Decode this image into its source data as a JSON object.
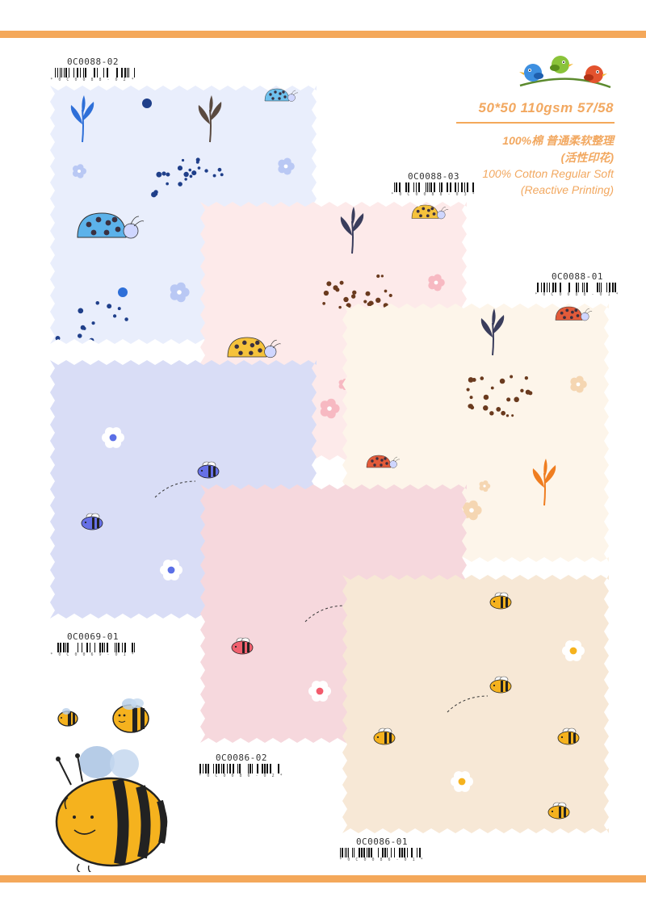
{
  "colors": {
    "accent": "#f4a85a",
    "band": "#f4a85a",
    "text_orange": "#f2a860"
  },
  "spec": {
    "main": "50*50 110gsm 57/58",
    "cn_line1": "100%棉  普通柔软整理",
    "cn_line2": "(活性印花)",
    "en_line1": "100% Cotton  Regular Soft",
    "en_line2": "(Reactive Printing)"
  },
  "swatches": [
    {
      "code": "0C0088-02",
      "barcode_text": "* 0 C 0 0 8 8 - 0 2 *",
      "bg": "#e9eefc",
      "motif": "ladybug-blue"
    },
    {
      "code": "0C0088-03",
      "barcode_text": "* 0 C 0 0 8 8 - 0 3 *",
      "bg": "#fdeaea",
      "motif": "ladybug-yellow"
    },
    {
      "code": "0C0088-01",
      "barcode_text": "* 0 C 0 0 8 8 - 0 1 *",
      "bg": "#fdf5ea",
      "motif": "leaf-orange"
    },
    {
      "code": "0C0069-01",
      "barcode_text": "* 0 C 0 0 6 9 - 0 1 *",
      "bg": "#d9ddf6",
      "motif": "bee-blue"
    },
    {
      "code": "0C0086-02",
      "barcode_text": "* 0 C 0 0 8 6 - 0 2 *",
      "bg": "#f6d8dd",
      "motif": "bee-pink"
    },
    {
      "code": "0C0086-01",
      "barcode_text": "* 0 C 0 0 8 6 - 0 1 *",
      "bg": "#f7e8d6",
      "motif": "bee-yellow"
    }
  ],
  "decorations": {
    "logo": "three-birds-on-branch-icon",
    "bee_illustration": "cartoon-bee-icon"
  }
}
